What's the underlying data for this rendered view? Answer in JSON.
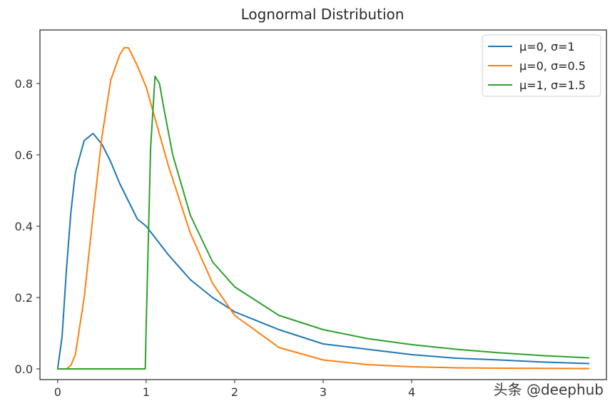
{
  "chart_data": {
    "type": "line",
    "title": "Lognormal Distribution",
    "xlabel": "",
    "ylabel": "",
    "xlim": [
      -0.2,
      6.2
    ],
    "ylim": [
      -0.03,
      0.95
    ],
    "xticks": [
      0,
      1,
      2,
      3,
      4
    ],
    "xtick_labels": [
      "0",
      "1",
      "2",
      "3",
      "4"
    ],
    "yticks": [
      0.0,
      0.2,
      0.4,
      0.6,
      0.8
    ],
    "ytick_labels": [
      "0.0",
      "0.2",
      "0.4",
      "0.6",
      "0.8"
    ],
    "grid": false,
    "legend_position": "top-right",
    "series": [
      {
        "name": "μ=0, σ=1",
        "color": "#1f77b4",
        "x": [
          0,
          0.05,
          0.1,
          0.15,
          0.2,
          0.3,
          0.4,
          0.5,
          0.6,
          0.7,
          0.8,
          0.9,
          1.0,
          1.25,
          1.5,
          1.75,
          2.0,
          2.5,
          3.0,
          3.5,
          4.0,
          4.5,
          5.0,
          5.5,
          6.0
        ],
        "y": [
          0.0,
          0.09,
          0.28,
          0.44,
          0.55,
          0.64,
          0.66,
          0.63,
          0.58,
          0.52,
          0.47,
          0.42,
          0.4,
          0.32,
          0.25,
          0.2,
          0.16,
          0.11,
          0.07,
          0.055,
          0.04,
          0.03,
          0.025,
          0.019,
          0.015
        ]
      },
      {
        "name": "μ=0, σ=0.5",
        "color": "#ff7f0e",
        "x": [
          0,
          0.1,
          0.15,
          0.2,
          0.3,
          0.4,
          0.5,
          0.6,
          0.7,
          0.75,
          0.8,
          0.9,
          1.0,
          1.25,
          1.5,
          1.75,
          2.0,
          2.5,
          3.0,
          3.5,
          4.0,
          4.5,
          5.0,
          6.0
        ],
        "y": [
          0.0,
          0.0,
          0.01,
          0.04,
          0.2,
          0.43,
          0.65,
          0.81,
          0.88,
          0.9,
          0.9,
          0.85,
          0.79,
          0.57,
          0.38,
          0.24,
          0.15,
          0.06,
          0.025,
          0.012,
          0.006,
          0.003,
          0.002,
          0.001
        ]
      },
      {
        "name": "μ=1, σ=1.5",
        "color": "#2ca02c",
        "x": [
          0,
          0.5,
          0.99,
          1.0,
          1.05,
          1.1,
          1.15,
          1.2,
          1.3,
          1.5,
          1.75,
          2.0,
          2.5,
          3.0,
          3.5,
          4.0,
          4.5,
          5.0,
          5.5,
          6.0
        ],
        "y": [
          0.0,
          0.0,
          0.0,
          0.12,
          0.62,
          0.82,
          0.8,
          0.73,
          0.6,
          0.43,
          0.3,
          0.23,
          0.15,
          0.11,
          0.085,
          0.068,
          0.055,
          0.045,
          0.037,
          0.031
        ]
      }
    ]
  },
  "watermark": "头条 @deephub"
}
